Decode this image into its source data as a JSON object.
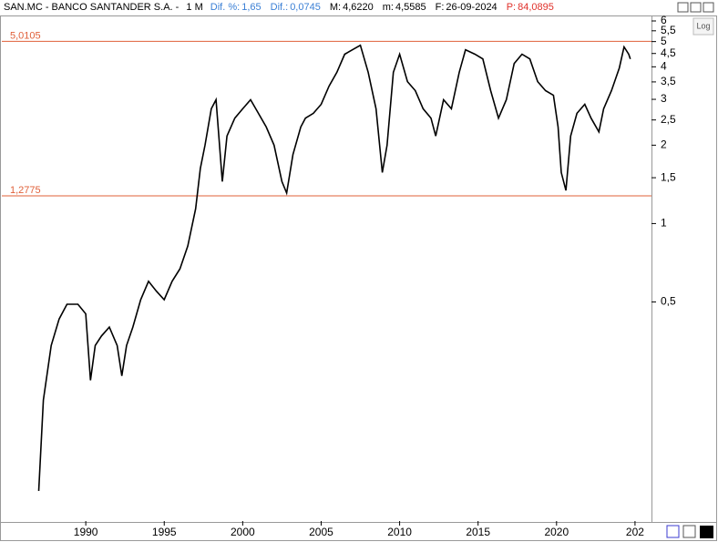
{
  "header": {
    "symbol": "SAN.MC - BANCO SANTANDER S.A. -",
    "period": "1 M",
    "fields": [
      {
        "label": "Dif. %:",
        "value": "1,65",
        "color": "#3a7fd5"
      },
      {
        "label": "Dif.:",
        "value": "0,0745",
        "color": "#3a7fd5"
      },
      {
        "label": "M:",
        "value": "4,6220",
        "color": "#000000"
      },
      {
        "label": "m:",
        "value": "4,5585",
        "color": "#000000"
      },
      {
        "label": "F:",
        "value": "26-09-2024",
        "color": "#000000"
      },
      {
        "label": "P:",
        "value": "84,0895",
        "color": "#e0302a"
      }
    ],
    "log_button": "Log"
  },
  "chart_data": {
    "type": "line",
    "log_y": true,
    "color": "#000000",
    "x": [
      1987.0,
      1987.3,
      1987.8,
      1988.3,
      1988.8,
      1989.5,
      1990.0,
      1990.3,
      1990.6,
      1991.0,
      1991.5,
      1992.0,
      1992.3,
      1992.6,
      1993.0,
      1993.5,
      1994.0,
      1994.5,
      1995.0,
      1995.5,
      1996.0,
      1996.5,
      1997.0,
      1997.3,
      1997.6,
      1998.0,
      1998.3,
      1998.7,
      1999.0,
      1999.5,
      2000.0,
      2000.5,
      2001.0,
      2001.5,
      2002.0,
      2002.5,
      2002.8,
      2003.2,
      2003.7,
      2004.0,
      2004.5,
      2005.0,
      2005.5,
      2006.0,
      2006.5,
      2007.0,
      2007.5,
      2008.0,
      2008.5,
      2008.9,
      2009.2,
      2009.6,
      2010.0,
      2010.5,
      2011.0,
      2011.5,
      2012.0,
      2012.3,
      2012.8,
      2013.3,
      2013.8,
      2014.2,
      2014.8,
      2015.3,
      2015.8,
      2016.3,
      2016.8,
      2017.3,
      2017.8,
      2018.3,
      2018.8,
      2019.3,
      2019.8,
      2020.1,
      2020.3,
      2020.6,
      2020.9,
      2021.3,
      2021.8,
      2022.2,
      2022.7,
      2023.0,
      2023.5,
      2024.0,
      2024.3,
      2024.6,
      2024.7
    ],
    "values": [
      0.094,
      0.21,
      0.34,
      0.43,
      0.49,
      0.49,
      0.45,
      0.25,
      0.34,
      0.37,
      0.4,
      0.34,
      0.26,
      0.34,
      0.4,
      0.51,
      0.6,
      0.55,
      0.51,
      0.6,
      0.67,
      0.82,
      1.14,
      1.63,
      2.0,
      2.76,
      2.99,
      1.45,
      2.17,
      2.54,
      2.76,
      2.99,
      2.65,
      2.35,
      2.0,
      1.45,
      1.31,
      1.84,
      2.35,
      2.54,
      2.65,
      2.87,
      3.37,
      3.81,
      4.47,
      4.65,
      4.84,
      3.81,
      2.76,
      1.57,
      2.0,
      3.81,
      4.47,
      3.51,
      3.24,
      2.76,
      2.54,
      2.17,
      2.99,
      2.76,
      3.81,
      4.65,
      4.47,
      4.29,
      3.24,
      2.54,
      2.99,
      4.12,
      4.47,
      4.29,
      3.51,
      3.24,
      3.11,
      2.35,
      1.57,
      1.34,
      2.17,
      2.65,
      2.87,
      2.54,
      2.25,
      2.76,
      3.24,
      3.96,
      4.77,
      4.47,
      4.29
    ],
    "xlim": [
      1984.65,
      2026.05
    ],
    "xticks": [
      1990,
      1995,
      2000,
      2005,
      2010,
      2015,
      2020,
      {
        "value": 2025,
        "label": "202"
      }
    ],
    "ylim": [
      0.072,
      6.4
    ],
    "yticks": [
      6,
      {
        "value": 5.5,
        "label": "5,5"
      },
      5,
      {
        "value": 4.5,
        "label": "4,5"
      },
      4,
      {
        "value": 3.5,
        "label": "3,5"
      },
      3,
      {
        "value": 2.5,
        "label": "2,5"
      },
      2,
      {
        "value": 1.5,
        "label": "1,5"
      },
      1,
      {
        "value": 0.5,
        "label": "0,5"
      }
    ],
    "hlines": [
      {
        "value": 5.0105,
        "label": "5,0105",
        "color": "#e0603a"
      },
      {
        "value": 1.2775,
        "label": "1,2775",
        "color": "#e0603a"
      }
    ]
  }
}
